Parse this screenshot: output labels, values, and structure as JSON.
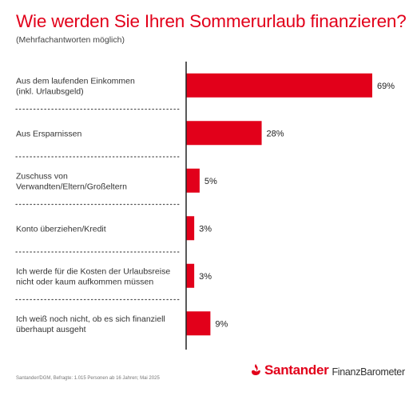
{
  "title": "Wie werden Sie Ihren Sommerurlaub finanzieren?",
  "subtitle": "(Mehrfachantworten möglich)",
  "chart_data": {
    "type": "bar",
    "orientation": "horizontal",
    "categories": [
      "Aus dem laufenden Einkommen\n(inkl. Urlaubsgeld)",
      "Aus Ersparnissen",
      "Zuschuss von\nVerwandten/Eltern/Großeltern",
      "Konto überziehen/Kredit",
      "Ich werde für die Kosten der Urlaubsreise\nnicht oder kaum aufkommen müssen",
      "Ich weiß noch nicht, ob es sich finanziell\nüberhaupt ausgeht"
    ],
    "values": [
      69,
      28,
      5,
      3,
      3,
      9
    ],
    "value_labels": [
      "69%",
      "28%",
      "5%",
      "3%",
      "3%",
      "9%"
    ],
    "xlim": [
      0,
      69
    ],
    "bar_color": "#e2001a",
    "grid": false,
    "legend": "none"
  },
  "footer": {
    "source": "Santander/DGM, Befragte: 1.015 Personen ab 16 Jahren; Mai 2025"
  },
  "brand": {
    "name": "Santander",
    "product": "FinanzBarometer",
    "color": "#e2001a",
    "icons": [
      "santander-flame-icon",
      "barometer-gauge-icon"
    ]
  }
}
